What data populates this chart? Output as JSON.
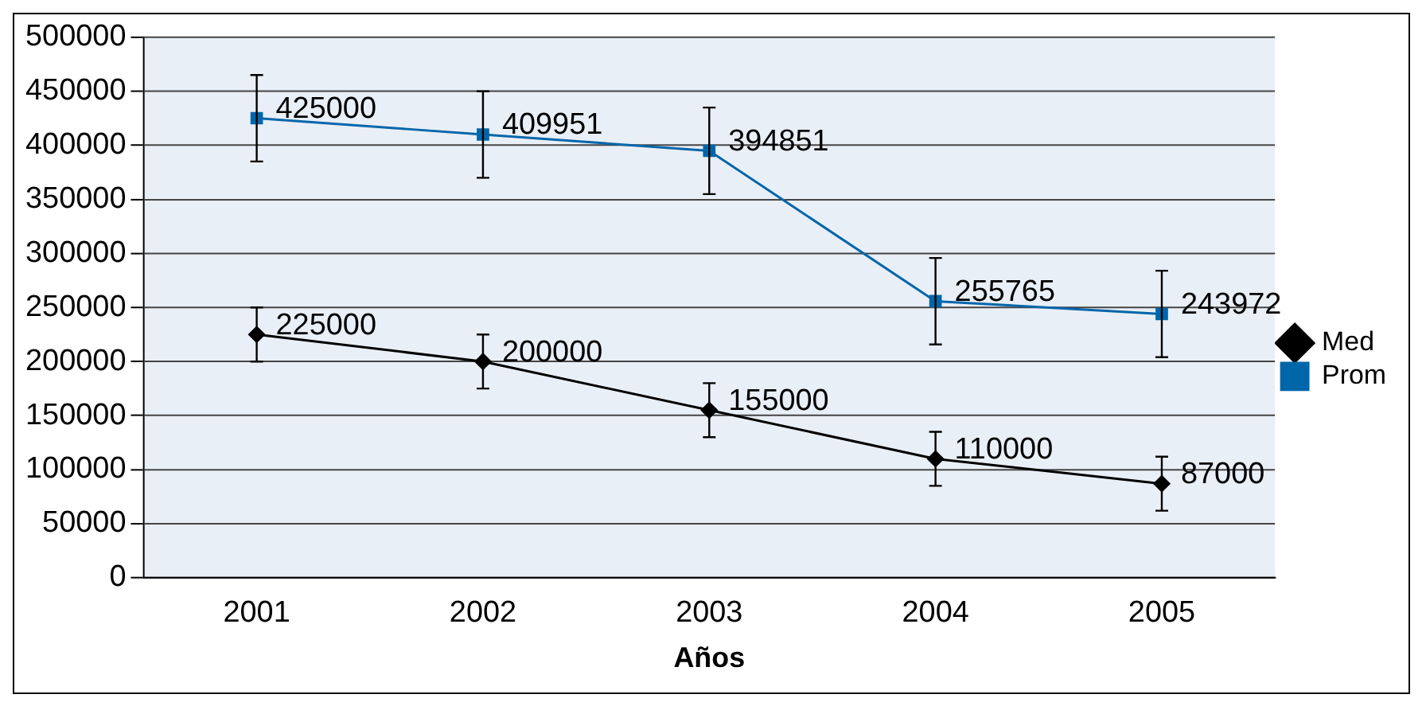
{
  "chart_data": {
    "type": "line",
    "xlabel": "Años",
    "categories": [
      "2001",
      "2002",
      "2003",
      "2004",
      "2005"
    ],
    "series": [
      {
        "name": "Med",
        "color": "#000000",
        "marker": "diamond",
        "values": [
          225000,
          200000,
          155000,
          110000,
          87000
        ],
        "errors": [
          25000,
          25000,
          25000,
          25000,
          25000
        ]
      },
      {
        "name": "Prom",
        "color": "#0066aa",
        "marker": "square",
        "values": [
          425000,
          409951,
          394851,
          255765,
          243972
        ],
        "errors": [
          40000,
          40000,
          40000,
          40000,
          40000
        ]
      }
    ],
    "ylim": [
      0,
      500000
    ],
    "yticks": [
      0,
      50000,
      100000,
      150000,
      200000,
      250000,
      300000,
      350000,
      400000,
      450000,
      500000
    ],
    "grid": "y",
    "legend": "right",
    "data_labels": true,
    "line_style": "solid"
  }
}
